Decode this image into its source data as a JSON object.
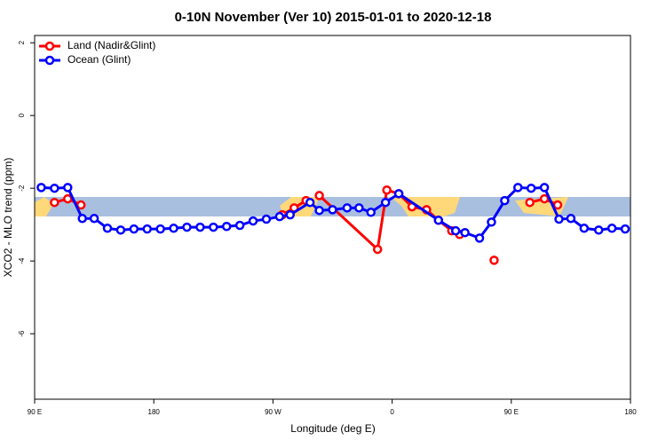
{
  "chart_data": {
    "type": "line",
    "title": "0-10N November (Ver 10)   2015-01-01 to 2020-12-18",
    "x_label": "Longitude (deg E)",
    "y_label": "XCO2 - MLO trend (ppm)",
    "xlim": [
      90,
      540
    ],
    "ylim": [
      -7.8,
      2.2
    ],
    "xticks": [
      {
        "value": 90,
        "label": "90 E"
      },
      180,
      {
        "value": 270,
        "label": "90 W"
      },
      {
        "value": 360,
        "label": "0"
      },
      {
        "value": 450,
        "label": "90 E"
      },
      {
        "value": 540,
        "label": "180"
      }
    ],
    "yticks": [
      2,
      0,
      -2,
      -4,
      -6
    ],
    "legend": "top-left",
    "series": [
      {
        "name": "Land (Nadir&Glint)",
        "color": "#ff0000",
        "x": [
          105,
          115,
          125,
          200,
          277,
          286,
          295,
          300,
          305,
          349,
          356,
          365,
          375,
          386,
          395,
          405,
          411,
          425,
          437,
          450,
          464,
          475,
          485
        ],
        "values": [
          -2.39,
          -2.29,
          -2.46,
          null,
          -2.73,
          -2.54,
          -2.34,
          null,
          -2.2,
          -3.68,
          -2.05,
          -2.15,
          -2.51,
          -2.59,
          -2.88,
          -3.17,
          -3.27,
          null,
          -3.98,
          null,
          -2.39,
          -2.29,
          -2.46
        ]
      },
      {
        "name": "Ocean (Glint)",
        "color": "#0000ff",
        "x": [
          95,
          105,
          115,
          126,
          135,
          145,
          155,
          165,
          175,
          185,
          195,
          205,
          215,
          225,
          235,
          245,
          255,
          265,
          275,
          283,
          298,
          305,
          315,
          326,
          335,
          344,
          355,
          365,
          395,
          408,
          415,
          426,
          435,
          445,
          455,
          465,
          475,
          486,
          495,
          505,
          516,
          526,
          536
        ],
        "values": [
          -1.98,
          -2.0,
          -1.98,
          -2.83,
          -2.83,
          -3.1,
          -3.15,
          -3.12,
          -3.12,
          -3.12,
          -3.1,
          -3.07,
          -3.07,
          -3.07,
          -3.05,
          -3.02,
          -2.9,
          -2.85,
          -2.78,
          -2.73,
          -2.39,
          -2.61,
          -2.59,
          -2.54,
          -2.54,
          -2.66,
          -2.39,
          -2.15,
          -2.88,
          -3.17,
          -3.22,
          -3.37,
          -2.93,
          -2.34,
          -1.98,
          -2.0,
          -1.98,
          -2.85,
          -2.83,
          -3.1,
          -3.15,
          -3.1,
          -3.12
        ]
      }
    ]
  }
}
